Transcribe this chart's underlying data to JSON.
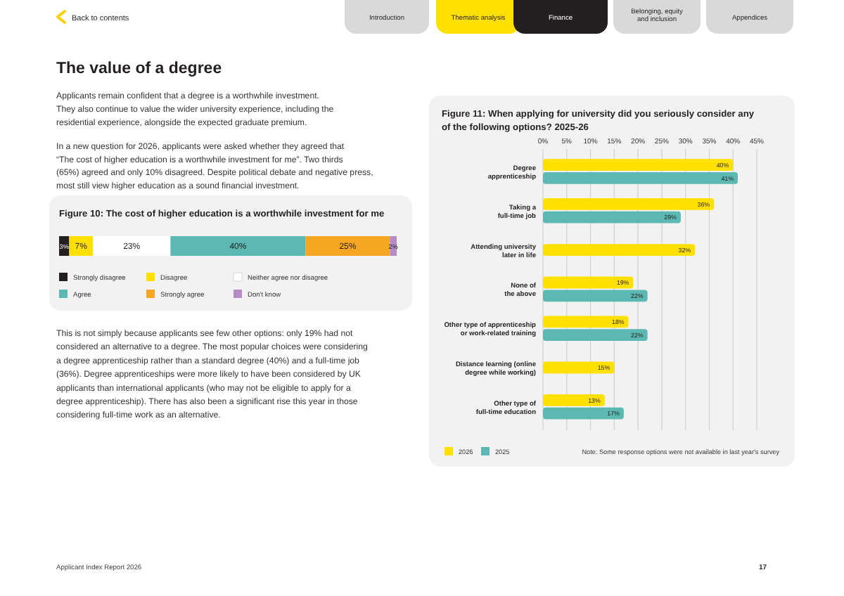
{
  "chart_data": [
    {
      "type": "bar",
      "orientation": "horizontal",
      "stacked": true,
      "title": "Figure 10: The cost of higher education is a worthwhile investment for me",
      "categories": [
        null
      ],
      "xlim": [
        0,
        100
      ],
      "legend": "bottom",
      "series": [
        {
          "name": "Strongly disagree",
          "color": "#231f20",
          "values": [
            3
          ],
          "value_labels": [
            "3%"
          ]
        },
        {
          "name": "Disagree",
          "color": "#ffe000",
          "values": [
            7
          ],
          "value_labels": [
            "7%"
          ]
        },
        {
          "name": "Neither agree nor disagree",
          "color": "#ffffff",
          "values": [
            23
          ],
          "value_labels": [
            "23%"
          ]
        },
        {
          "name": "Agree",
          "color": "#5bb8b2",
          "values": [
            40
          ],
          "value_labels": [
            "40%"
          ]
        },
        {
          "name": "Strongly agree",
          "color": "#f6a623",
          "values": [
            25
          ],
          "value_labels": [
            "25%"
          ]
        },
        {
          "name": "Don't know",
          "color": "#b58cc6",
          "values": [
            2
          ],
          "value_labels": [
            "2%"
          ]
        }
      ],
      "annotations": [
        "Back to contents",
        "Introduction",
        "Thematic analysis",
        "Finance",
        "Belonging, equity and inclusion",
        "Appendices",
        "The value of a degree",
        "Applicants remain confident that a degree is a worthwhile investment.",
        "They also continue to value the wider university experience, including the",
        "residential experience, alongside the expected graduate premium.",
        "In a new question for 2026, applicants were asked whether they agreed that",
        "“The cost of higher education is a worthwhile investment for me”. Two thirds",
        "(65%) agreed and only 10% disagreed. Despite political debate and negative press,",
        "most still view higher education as a sound financial investment.",
        "This is not simply because applicants see few other options: only 19% had not",
        "considered an alternative to a degree. The most popular choices were considering",
        "a degree apprenticeship rather than a standard degree (40%) and a full-time job",
        "(36%). Degree apprenticeships were more likely to have been considered by UK",
        "applicants than international applicants (who may not be eligible to apply for a",
        "degree apprenticeship). There has also been a significant rise this year in those",
        "considering full-time work as an alternative.",
        "Applicant Index Report 2026",
        "17"
      ]
    },
    {
      "type": "bar",
      "orientation": "horizontal",
      "title": "Figure 11: When applying for university did you seriously consider any of the following options? 2025-26",
      "categories": [
        "Degree apprenticeship",
        "Taking a full-time job",
        "Attending university later in life",
        "None of the above",
        "Other type of apprenticeship or work-related training",
        "Distance learning (online degree while working)",
        "Other type of full-time education"
      ],
      "xlim": [
        0,
        45
      ],
      "xticks": [
        {
          "value": 0,
          "label": "0%"
        },
        {
          "value": 5,
          "label": "5%"
        },
        {
          "value": 10,
          "label": "10%"
        },
        {
          "value": 15,
          "label": "15%"
        },
        {
          "value": 20,
          "label": "20%"
        },
        {
          "value": 25,
          "label": "25%"
        },
        {
          "value": 30,
          "label": "30%"
        },
        {
          "value": 35,
          "label": "35%"
        },
        {
          "value": 40,
          "label": "40%"
        },
        {
          "value": 45,
          "label": "45%"
        }
      ],
      "grid": "x",
      "legend": "bottom left",
      "series": [
        {
          "name": "2026",
          "color": "#ffe000",
          "values": [
            40,
            36,
            32,
            19,
            18,
            15,
            13
          ],
          "value_labels": [
            "40%",
            "36%",
            "32%",
            "19%",
            "18%",
            "15%",
            "13%"
          ]
        },
        {
          "name": "2025",
          "color": "#5bb8b2",
          "values": [
            41,
            29,
            null,
            22,
            22,
            null,
            17
          ],
          "value_labels": [
            "41%",
            "29%",
            null,
            "22%",
            "22%",
            null,
            "17%"
          ]
        }
      ],
      "annotations": [
        "Note: Some response options were not available in last year's survey"
      ]
    }
  ]
}
